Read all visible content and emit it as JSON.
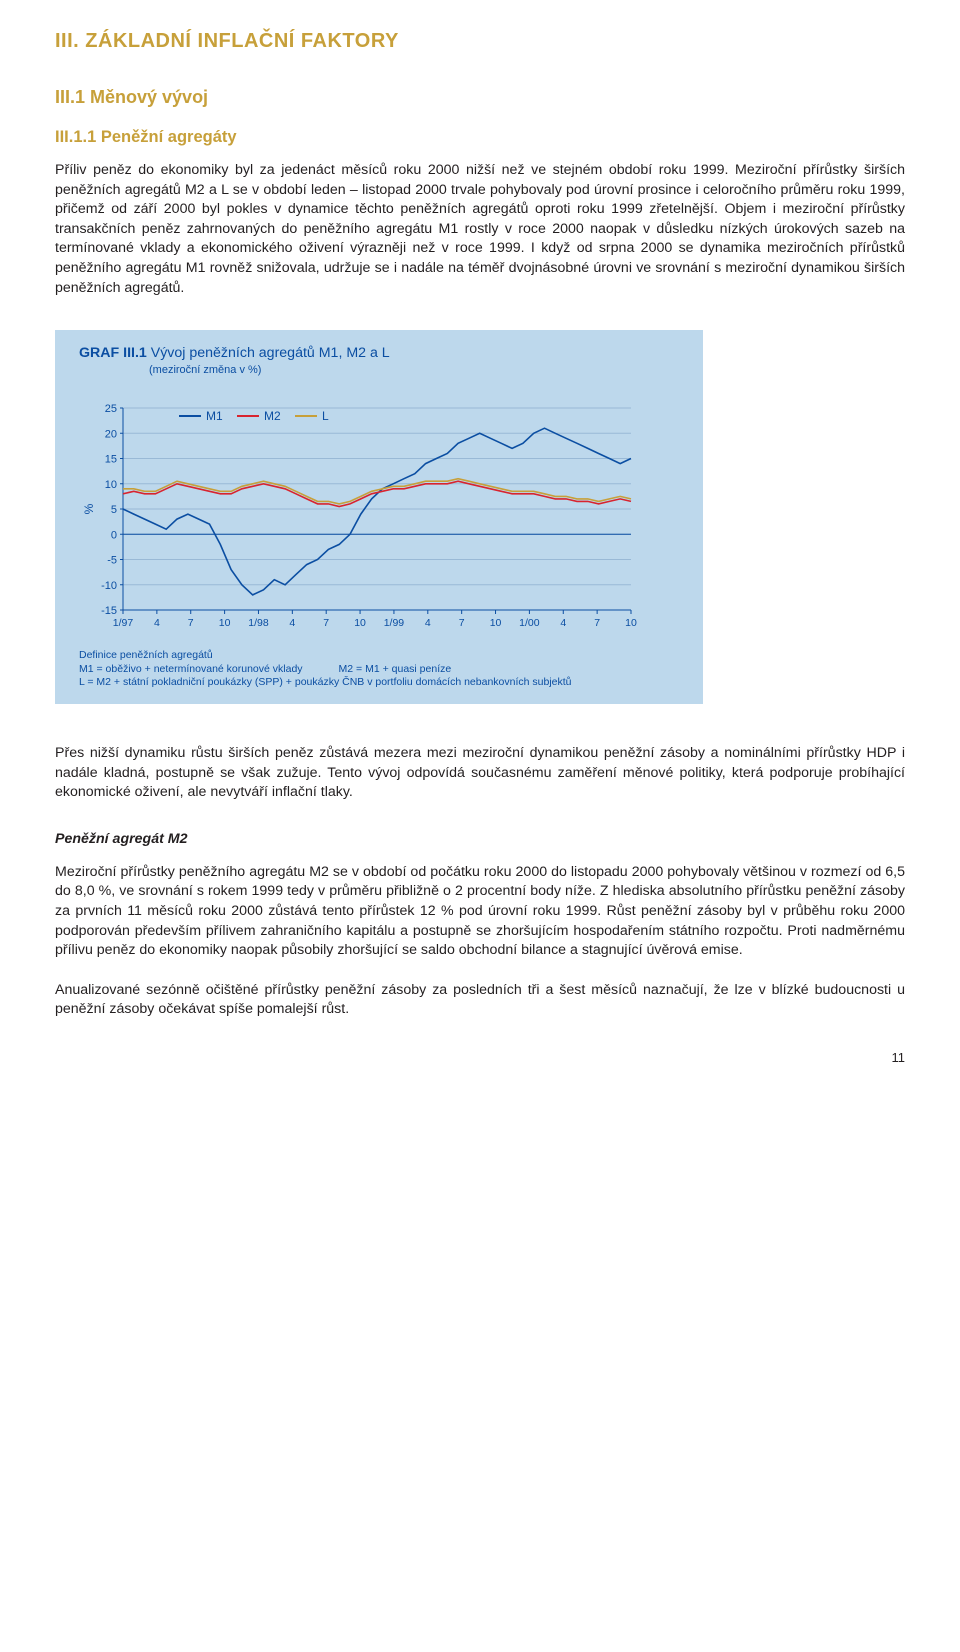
{
  "section_title": "III. ZÁKLADNÍ INFLAČNÍ FAKTORY",
  "sub_title": "III.1 Měnový vývoj",
  "subsub_title": "III.1.1 Peněžní agregáty",
  "para1": "Příliv peněz do ekonomiky byl za jedenáct měsíců roku 2000 nižší než ve stejném období roku 1999. Meziroční přírůstky širších peněžních agregátů M2 a L se v období leden – listopad 2000 trvale pohybovaly pod úrovní prosince i celoročního průměru roku 1999, přičemž od září 2000 byl pokles v dynamice těchto peněžních agregátů oproti roku 1999 zřetelnější. Objem i meziroční přírůstky transakčních peněz zahrnovaných do peněžního agregátu M1 rostly v roce 2000 naopak v důsledku nízkých úrokových sazeb na termínované vklady a ekonomického oživení výrazněji než v roce 1999. I když od srpna 2000 se dynamika meziročních přírůstků peněžního agregátu M1 rovněž snižovala, udržuje se i nadále na téměř dvojnásobné úrovni ve srovnání s meziroční dynamikou širších peněžních agregátů.",
  "chart": {
    "title_strong": "GRAF III.1",
    "title_rest": " Vývoj peněžních agregátů M1, M2 a L",
    "subtitle": "(meziroční změna v %)",
    "ylabel": "%",
    "ylim": [
      -15,
      25
    ],
    "ytick_step": 5,
    "yticks": [
      25,
      20,
      15,
      10,
      5,
      0,
      -5,
      -10,
      -15
    ],
    "xlabels": [
      "1/97",
      "4",
      "7",
      "10",
      "1/98",
      "4",
      "7",
      "10",
      "1/99",
      "4",
      "7",
      "10",
      "1/00",
      "4",
      "7",
      "10"
    ],
    "background_color": "#bdd8ec",
    "grid_color": "#99b9d6",
    "axis_color": "#0b4ea2",
    "text_color": "#0b4ea2",
    "series": [
      {
        "name": "M1",
        "color": "#0b4ea2",
        "width": 1.6,
        "values": [
          5,
          4,
          3,
          2,
          1,
          3,
          4,
          3,
          2,
          -2,
          -7,
          -10,
          -12,
          -11,
          -9,
          -10,
          -8,
          -6,
          -5,
          -3,
          -2,
          0,
          4,
          7,
          9,
          10,
          11,
          12,
          14,
          15,
          16,
          18,
          19,
          20,
          19,
          18,
          17,
          18,
          20,
          21,
          20,
          19,
          18,
          17,
          16,
          15,
          14,
          15
        ]
      },
      {
        "name": "M2",
        "color": "#d8242f",
        "width": 1.6,
        "values": [
          8,
          8.5,
          8,
          8,
          9,
          10,
          9.5,
          9,
          8.5,
          8,
          8,
          9,
          9.5,
          10,
          9.5,
          9,
          8,
          7,
          6,
          6,
          5.5,
          6,
          7,
          8,
          8.5,
          9,
          9,
          9.5,
          10,
          10,
          10,
          10.5,
          10,
          9.5,
          9,
          8.5,
          8,
          8,
          8,
          7.5,
          7,
          7,
          6.5,
          6.5,
          6,
          6.5,
          7,
          6.5
        ]
      },
      {
        "name": "L",
        "color": "#c7a03a",
        "width": 1.6,
        "values": [
          9,
          9,
          8.5,
          8.5,
          9.5,
          10.5,
          10,
          9.5,
          9,
          8.5,
          8.5,
          9.5,
          10,
          10.5,
          10,
          9.5,
          8.5,
          7.5,
          6.5,
          6.5,
          6,
          6.5,
          7.5,
          8.5,
          9,
          9.5,
          9.5,
          10,
          10.5,
          10.5,
          10.5,
          11,
          10.5,
          10,
          9.5,
          9,
          8.5,
          8.5,
          8.5,
          8,
          7.5,
          7.5,
          7,
          7,
          6.5,
          7,
          7.5,
          7
        ]
      }
    ],
    "legend": [
      {
        "label": "M1",
        "color": "#0b4ea2"
      },
      {
        "label": "M2",
        "color": "#d8242f"
      },
      {
        "label": "L",
        "color": "#c7a03a"
      }
    ],
    "defs_title": "Definice peněžních agregátů",
    "def_m1": "M1 = oběživo + netermínované korunové vklady",
    "def_m2": "M2 = M1 + quasi peníze",
    "def_l": "L   = M2 + státní pokladniční poukázky (SPP) + poukázky ČNB v portfoliu domácích nebankovních subjektů"
  },
  "para2": "Přes nižší dynamiku růstu širších peněz zůstává mezera mezi meziroční dynamikou peněžní zásoby a nominálními přírůstky HDP i nadále kladná, postupně se však zužuje. Tento vývoj odpovídá současnému zaměření měnové politiky, která podporuje probíhající ekonomické oživení, ale nevytváří inflační tlaky.",
  "italic_head": "Peněžní agregát M2",
  "para3": "Meziroční přírůstky peněžního agregátu M2 se v období od počátku roku 2000 do listopadu 2000 pohybovaly většinou v rozmezí od 6,5 do 8,0 %, ve srovnání s rokem 1999 tedy v průměru přibližně o 2 procentní body níže. Z hlediska absolutního přírůstku peněžní zásoby za prvních 11 měsíců roku 2000 zůstává tento přírůstek 12 % pod úrovní roku 1999. Růst peněžní zásoby byl v průběhu roku 2000 podporován především přílivem zahraničního kapitálu a postupně se zhoršujícím hospodařením státního rozpočtu. Proti nadměrnému přílivu peněz do ekonomiky naopak působily zhoršující se saldo obchodní bilance a stagnující úvěrová emise.",
  "para4": "Anualizované sezónně očištěné přírůstky peněžní zásoby za posledních tři a šest měsíců naznačují, že lze v blízké budoucnosti u peněžní zásoby očekávat spíše pomalejší růst.",
  "page_number": "11"
}
